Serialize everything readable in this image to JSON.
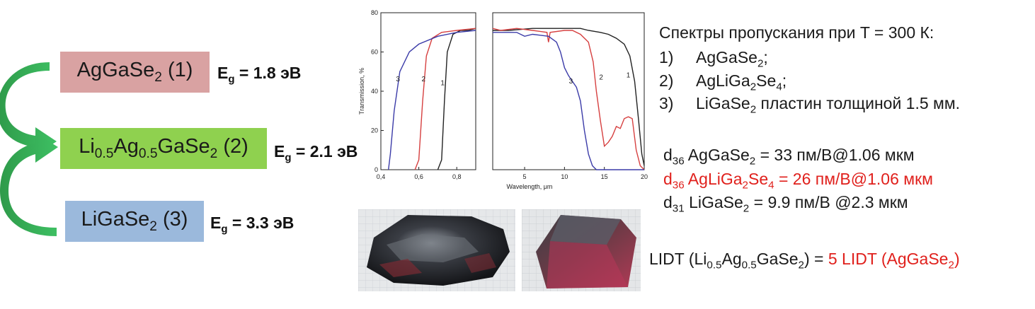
{
  "compounds": [
    {
      "pre": "AgGaSe",
      "s1": "2",
      "post": " (1)",
      "eg_label": "E",
      "eg_sub": "g",
      "eg_value": " = 1.8 эВ",
      "color": "#d9a2a2"
    },
    {
      "pre": "Li",
      "s1": "0.5",
      "mid": "Ag",
      "s2": "0.5",
      "mid2": "GaSe",
      "s3": "2",
      "post": " (2)",
      "eg_label": "E",
      "eg_sub": "g",
      "eg_value": " = 2.1 эВ",
      "color": "#8fd14f"
    },
    {
      "pre": "LiGaSe",
      "s1": "2",
      "post": " (3)",
      "eg_label": "E",
      "eg_sub": "g",
      "eg_value": " = 3.3 эВ",
      "color": "#9bb9dc"
    }
  ],
  "spectra_caption": {
    "title": "Спектры пропускания при T = 300 К:",
    "items": [
      {
        "num": "1)",
        "pre": "AgGaSe",
        "sub": "2",
        "post": ";"
      },
      {
        "num": "2)",
        "pre": "AgLiGa",
        "sub": "2",
        "mid": "Se",
        "sub2": "4",
        "post": ";"
      },
      {
        "num": "3)",
        "pre": "LiGaSe",
        "sub": "2",
        "post": " пластин толщиной 1.5 мм."
      }
    ]
  },
  "nonlinear": [
    {
      "d": "d",
      "dsub": "36",
      "pre": " AgGaSe",
      "sub": "2",
      "post": " = 33 пм/В@1.06 мкм",
      "highlight": false
    },
    {
      "d": "d",
      "dsub": "36",
      "pre": " AgLiGa",
      "sub": "2",
      "mid": "Se",
      "sub2": "4",
      "post": " = 26 пм/В@1.06 мкм",
      "highlight": true
    },
    {
      "d": "d",
      "dsub": "31",
      "pre": " LiGaSe",
      "sub": "2",
      "post": " = 9.9 пм/В @2.3 мкм",
      "highlight": false
    }
  ],
  "lidt": {
    "pre": "LIDT (Li",
    "s1": "0.5",
    "mid": "Ag",
    "s2": "0.5",
    "mid2": "GaSe",
    "s3": "2",
    "post": ") = ",
    "red_pre": "5 LIDT (AgGaSe",
    "red_sub": "2",
    "red_post": ")"
  },
  "chart_data": {
    "type": "line",
    "ylabel": "Transmission, %",
    "xlabel": "Wavelength, μm",
    "ylim": [
      0,
      80
    ],
    "yticks": [
      "0",
      "20",
      "40",
      "60",
      "80"
    ],
    "panels": [
      {
        "xlim": [
          0.4,
          0.9
        ],
        "xticks": [
          "0,4",
          "0,6",
          "0,8"
        ],
        "xtick_values": [
          0.4,
          0.6,
          0.8
        ],
        "label_positions": [
          {
            "label": "3",
            "x": 0.49,
            "y": 45
          },
          {
            "label": "2",
            "x": 0.625,
            "y": 45
          },
          {
            "label": "1",
            "x": 0.725,
            "y": 43
          }
        ]
      },
      {
        "xlim": [
          1,
          20
        ],
        "xticks": [
          "5",
          "10",
          "15",
          "20"
        ],
        "xtick_values": [
          5,
          10,
          15,
          20
        ],
        "label_positions": [
          {
            "label": "3",
            "x": 10.8,
            "y": 44
          },
          {
            "label": "2",
            "x": 14.6,
            "y": 46
          },
          {
            "label": "1",
            "x": 18.0,
            "y": 47
          }
        ]
      }
    ],
    "series": [
      {
        "name": "1",
        "color": "#222222",
        "short": [
          [
            0.7,
            0
          ],
          [
            0.72,
            5
          ],
          [
            0.735,
            35
          ],
          [
            0.75,
            60
          ],
          [
            0.78,
            69
          ],
          [
            0.82,
            71
          ],
          [
            0.86,
            71
          ],
          [
            0.9,
            72
          ]
        ],
        "long": [
          [
            1,
            71
          ],
          [
            3,
            71
          ],
          [
            6,
            72
          ],
          [
            10,
            72
          ],
          [
            12,
            72
          ],
          [
            13,
            71
          ],
          [
            14.5,
            70
          ],
          [
            15.5,
            69
          ],
          [
            16.5,
            67
          ],
          [
            17.5,
            64
          ],
          [
            18.2,
            58
          ],
          [
            18.8,
            45
          ],
          [
            19.3,
            25
          ],
          [
            19.7,
            8
          ],
          [
            20,
            2
          ]
        ]
      },
      {
        "name": "2",
        "color": "#d64040",
        "short": [
          [
            0.58,
            0
          ],
          [
            0.6,
            5
          ],
          [
            0.62,
            35
          ],
          [
            0.64,
            58
          ],
          [
            0.67,
            67
          ],
          [
            0.72,
            70
          ],
          [
            0.8,
            71
          ],
          [
            0.9,
            72
          ]
        ],
        "long": [
          [
            1,
            72
          ],
          [
            2,
            71
          ],
          [
            4,
            72
          ],
          [
            6,
            71
          ],
          [
            7.8,
            70
          ],
          [
            8,
            65
          ],
          [
            8.2,
            70
          ],
          [
            10,
            71
          ],
          [
            11,
            71
          ],
          [
            12,
            69
          ],
          [
            13,
            65
          ],
          [
            13.6,
            55
          ],
          [
            14,
            40
          ],
          [
            14.5,
            25
          ],
          [
            15,
            12
          ],
          [
            15.5,
            14
          ],
          [
            16,
            17
          ],
          [
            16.5,
            22
          ],
          [
            17,
            21
          ],
          [
            17.5,
            26
          ],
          [
            18,
            27
          ],
          [
            18.5,
            26
          ],
          [
            19,
            10
          ],
          [
            19.5,
            2
          ],
          [
            20,
            0
          ]
        ]
      },
      {
        "name": "3",
        "color": "#3b3ba8",
        "short": [
          [
            0.44,
            0
          ],
          [
            0.45,
            8
          ],
          [
            0.47,
            30
          ],
          [
            0.5,
            50
          ],
          [
            0.55,
            60
          ],
          [
            0.6,
            64
          ],
          [
            0.7,
            68
          ],
          [
            0.8,
            70
          ],
          [
            0.9,
            71
          ]
        ],
        "long": [
          [
            1,
            70
          ],
          [
            2,
            70
          ],
          [
            4,
            70
          ],
          [
            5,
            68
          ],
          [
            6,
            69
          ],
          [
            8,
            68
          ],
          [
            9,
            65
          ],
          [
            9.5,
            60
          ],
          [
            10,
            52
          ],
          [
            10.5,
            48
          ],
          [
            11,
            45
          ],
          [
            11.5,
            42
          ],
          [
            12,
            35
          ],
          [
            12.5,
            20
          ],
          [
            13,
            8
          ],
          [
            13.5,
            2
          ],
          [
            14,
            0
          ],
          [
            20,
            0
          ]
        ]
      }
    ]
  }
}
